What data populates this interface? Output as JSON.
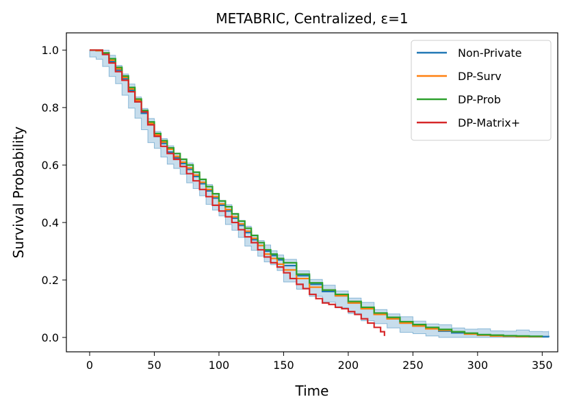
{
  "chart_data": {
    "type": "line",
    "title": "METABRIC, Centralized, ε=1",
    "xlabel": "Time",
    "ylabel": "Survival Probability",
    "xlim": [
      -18,
      362
    ],
    "ylim": [
      -0.05,
      1.06
    ],
    "xticks": [
      0,
      50,
      100,
      150,
      200,
      250,
      300,
      350
    ],
    "yticks": [
      0.0,
      0.2,
      0.4,
      0.6,
      0.8,
      1.0
    ],
    "ytick_labels": [
      "0.0",
      "0.2",
      "0.4",
      "0.6",
      "0.8",
      "1.0"
    ],
    "legend_position": "top-right",
    "step": true,
    "series": [
      {
        "name": "Non-Private",
        "color": "#1f77b4",
        "confidence_band": true,
        "band_color": "#1f77b4",
        "x": [
          0,
          5,
          10,
          15,
          20,
          25,
          30,
          35,
          40,
          45,
          50,
          55,
          60,
          65,
          70,
          75,
          80,
          85,
          90,
          95,
          100,
          105,
          110,
          115,
          120,
          125,
          130,
          135,
          140,
          145,
          150,
          160,
          170,
          180,
          190,
          200,
          210,
          220,
          230,
          240,
          250,
          260,
          270,
          280,
          290,
          300,
          310,
          320,
          330,
          340,
          350,
          355
        ],
        "y": [
          1.0,
          0.998,
          0.985,
          0.96,
          0.93,
          0.9,
          0.86,
          0.82,
          0.78,
          0.74,
          0.7,
          0.675,
          0.645,
          0.625,
          0.605,
          0.585,
          0.56,
          0.535,
          0.51,
          0.485,
          0.46,
          0.44,
          0.415,
          0.39,
          0.365,
          0.34,
          0.32,
          0.3,
          0.285,
          0.27,
          0.25,
          0.215,
          0.185,
          0.16,
          0.145,
          0.12,
          0.1,
          0.08,
          0.065,
          0.05,
          0.04,
          0.03,
          0.022,
          0.016,
          0.012,
          0.008,
          0.006,
          0.005,
          0.004,
          0.004,
          0.003,
          0.001
        ]
      },
      {
        "name": "DP-Surv",
        "color": "#ff7f0e",
        "x": [
          0,
          5,
          10,
          15,
          20,
          25,
          30,
          35,
          40,
          45,
          50,
          55,
          60,
          65,
          70,
          75,
          80,
          85,
          90,
          95,
          100,
          105,
          110,
          115,
          120,
          125,
          130,
          135,
          140,
          145,
          150,
          160,
          170,
          180,
          190,
          200,
          210,
          220,
          230,
          240,
          250,
          260,
          270,
          280,
          290,
          300,
          310,
          320,
          330,
          340,
          350
        ],
        "y": [
          1.0,
          0.998,
          0.99,
          0.965,
          0.935,
          0.905,
          0.865,
          0.825,
          0.785,
          0.745,
          0.705,
          0.68,
          0.655,
          0.63,
          0.61,
          0.59,
          0.565,
          0.54,
          0.515,
          0.49,
          0.465,
          0.445,
          0.42,
          0.395,
          0.37,
          0.345,
          0.32,
          0.29,
          0.275,
          0.255,
          0.235,
          0.205,
          0.175,
          0.165,
          0.145,
          0.12,
          0.1,
          0.08,
          0.065,
          0.05,
          0.04,
          0.03,
          0.025,
          0.02,
          0.012,
          0.008,
          0.005,
          0.004,
          0.003,
          0.003,
          0.003
        ]
      },
      {
        "name": "DP-Prob",
        "color": "#2ca02c",
        "x": [
          0,
          5,
          10,
          15,
          20,
          25,
          30,
          35,
          40,
          45,
          50,
          55,
          60,
          65,
          70,
          75,
          80,
          85,
          90,
          95,
          100,
          105,
          110,
          115,
          120,
          125,
          130,
          135,
          140,
          145,
          150,
          160,
          170,
          180,
          190,
          200,
          210,
          220,
          230,
          240,
          250,
          260,
          270,
          280,
          290,
          300,
          310,
          320,
          330,
          340,
          350
        ],
        "y": [
          1.0,
          1.0,
          0.99,
          0.97,
          0.94,
          0.91,
          0.87,
          0.83,
          0.79,
          0.75,
          0.71,
          0.685,
          0.66,
          0.64,
          0.62,
          0.6,
          0.575,
          0.55,
          0.525,
          0.5,
          0.475,
          0.455,
          0.43,
          0.405,
          0.38,
          0.355,
          0.33,
          0.305,
          0.29,
          0.275,
          0.26,
          0.22,
          0.19,
          0.165,
          0.15,
          0.125,
          0.105,
          0.085,
          0.07,
          0.055,
          0.045,
          0.035,
          0.028,
          0.02,
          0.015,
          0.01,
          0.008,
          0.006,
          0.005,
          0.004,
          0.003
        ]
      },
      {
        "name": "DP-Matrix+",
        "color": "#d62728",
        "x": [
          0,
          5,
          10,
          15,
          20,
          25,
          30,
          35,
          40,
          45,
          50,
          55,
          60,
          65,
          70,
          75,
          80,
          85,
          90,
          95,
          100,
          105,
          110,
          115,
          120,
          125,
          130,
          135,
          140,
          145,
          150,
          155,
          160,
          165,
          170,
          175,
          180,
          185,
          190,
          195,
          200,
          205,
          210,
          215,
          220,
          225,
          228
        ],
        "y": [
          1.0,
          1.0,
          0.985,
          0.955,
          0.925,
          0.895,
          0.855,
          0.82,
          0.785,
          0.74,
          0.7,
          0.665,
          0.64,
          0.62,
          0.595,
          0.57,
          0.545,
          0.515,
          0.49,
          0.46,
          0.44,
          0.42,
          0.4,
          0.375,
          0.35,
          0.33,
          0.305,
          0.28,
          0.26,
          0.245,
          0.225,
          0.205,
          0.185,
          0.17,
          0.15,
          0.135,
          0.12,
          0.115,
          0.105,
          0.1,
          0.09,
          0.08,
          0.065,
          0.05,
          0.035,
          0.02,
          0.005
        ]
      }
    ]
  }
}
